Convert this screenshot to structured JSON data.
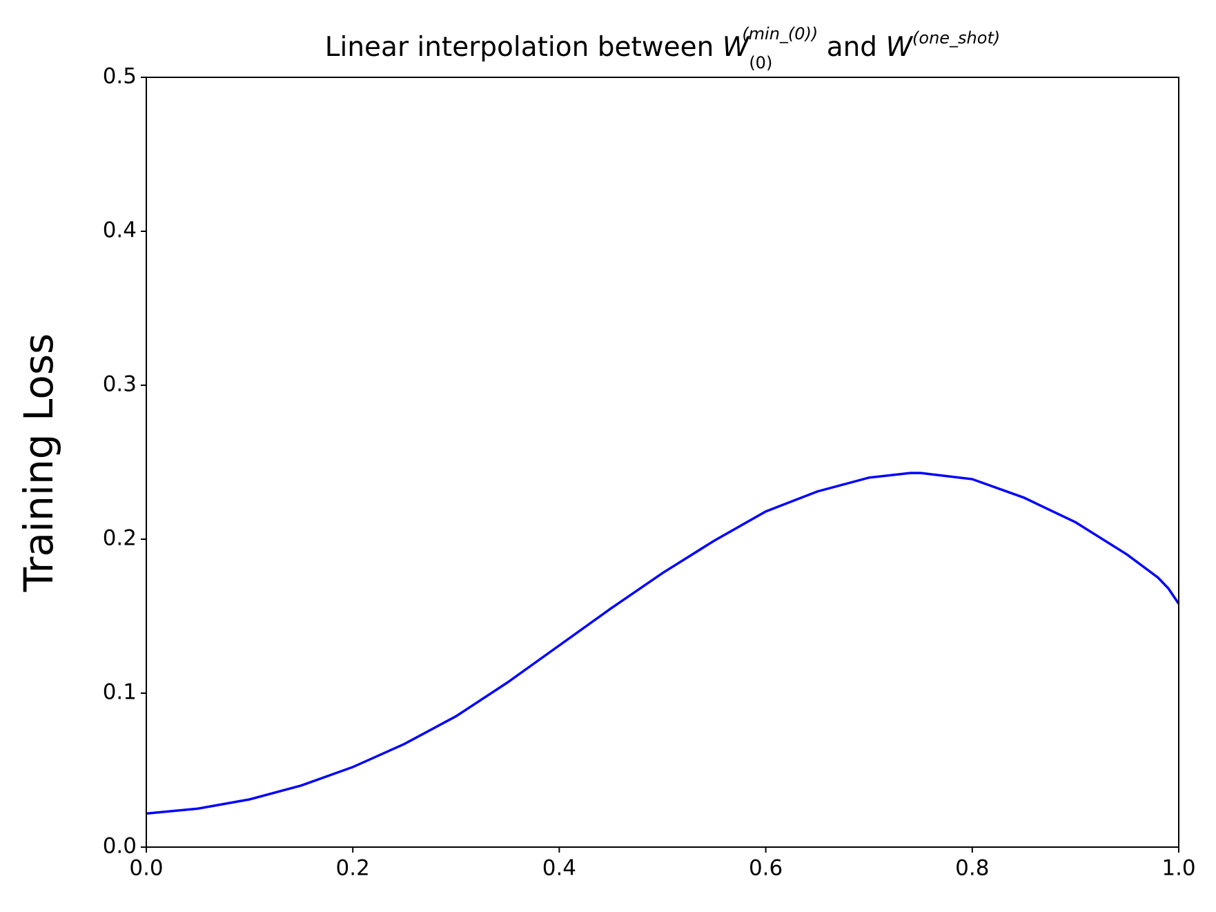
{
  "chart_data": {
    "type": "line",
    "title": [
      "Linear interpolation between ",
      "W",
      "(0)",
      "(min_(0))",
      " and ",
      "W",
      "(one_shot)"
    ],
    "y_label": "Training Loss",
    "xlim": [
      0,
      1
    ],
    "ylim": [
      0,
      0.5
    ],
    "xticks": [
      {
        "value": 0,
        "label": "0.0"
      },
      {
        "value": 0.2,
        "label": "0.2"
      },
      {
        "value": 0.4,
        "label": "0.4"
      },
      {
        "value": 0.6,
        "label": "0.6"
      },
      {
        "value": 0.8,
        "label": "0.8"
      },
      {
        "value": 1,
        "label": "1.0"
      }
    ],
    "yticks": [
      {
        "value": 0,
        "label": "0.0"
      },
      {
        "value": 0.1,
        "label": "0.1"
      },
      {
        "value": 0.2,
        "label": "0.2"
      },
      {
        "value": 0.3,
        "label": "0.3"
      },
      {
        "value": 0.4,
        "label": "0.4"
      },
      {
        "value": 0.5,
        "label": "0.5"
      }
    ],
    "x": [
      0,
      0.05,
      0.1,
      0.15,
      0.2,
      0.25,
      0.3,
      0.35,
      0.4,
      0.45,
      0.5,
      0.55,
      0.6,
      0.65,
      0.7,
      0.74,
      0.75,
      0.8,
      0.85,
      0.9,
      0.95,
      0.98,
      0.99,
      1
    ],
    "series": [
      {
        "color": "#0000ff",
        "values": [
          0.0218,
          0.025,
          0.031,
          0.04,
          0.052,
          0.067,
          0.085,
          0.107,
          0.131,
          0.155,
          0.178,
          0.199,
          0.218,
          0.231,
          0.24,
          0.243,
          0.243,
          0.239,
          0.227,
          0.211,
          0.19,
          0.175,
          0.168,
          0.158
        ]
      }
    ]
  }
}
